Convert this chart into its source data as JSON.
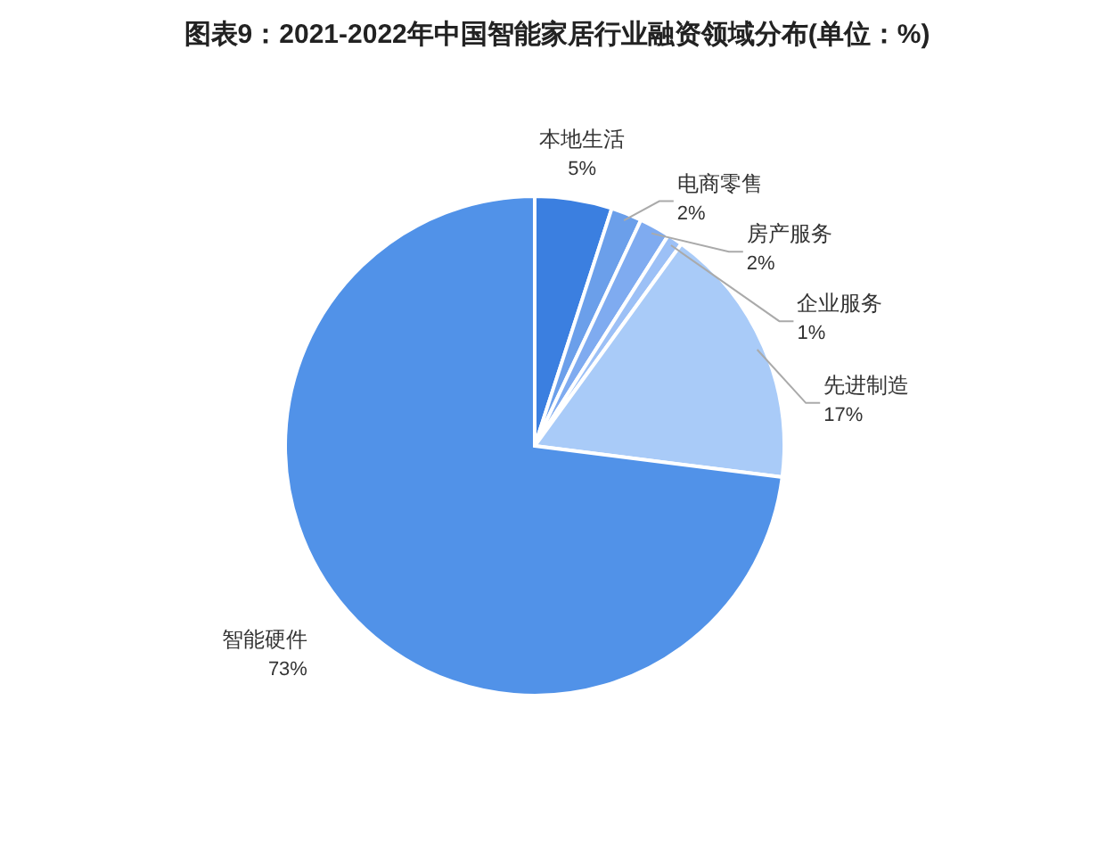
{
  "chart_data": {
    "type": "pie",
    "title": "图表9：2021-2022年中国智能家居行业融资领域分布(单位：%)",
    "categories": [
      "本地生活",
      "电商零售",
      "房产服务",
      "企业服务",
      "先进制造",
      "智能硬件"
    ],
    "values": [
      5,
      2,
      2,
      1,
      17,
      73
    ],
    "colors": [
      "#3b7fe0",
      "#6b9fea",
      "#7fabf0",
      "#9cc0f6",
      "#a9cbf8",
      "#5192e8"
    ],
    "value_labels": [
      "5%",
      "2%",
      "2%",
      "1%",
      "17%",
      "73%"
    ]
  }
}
